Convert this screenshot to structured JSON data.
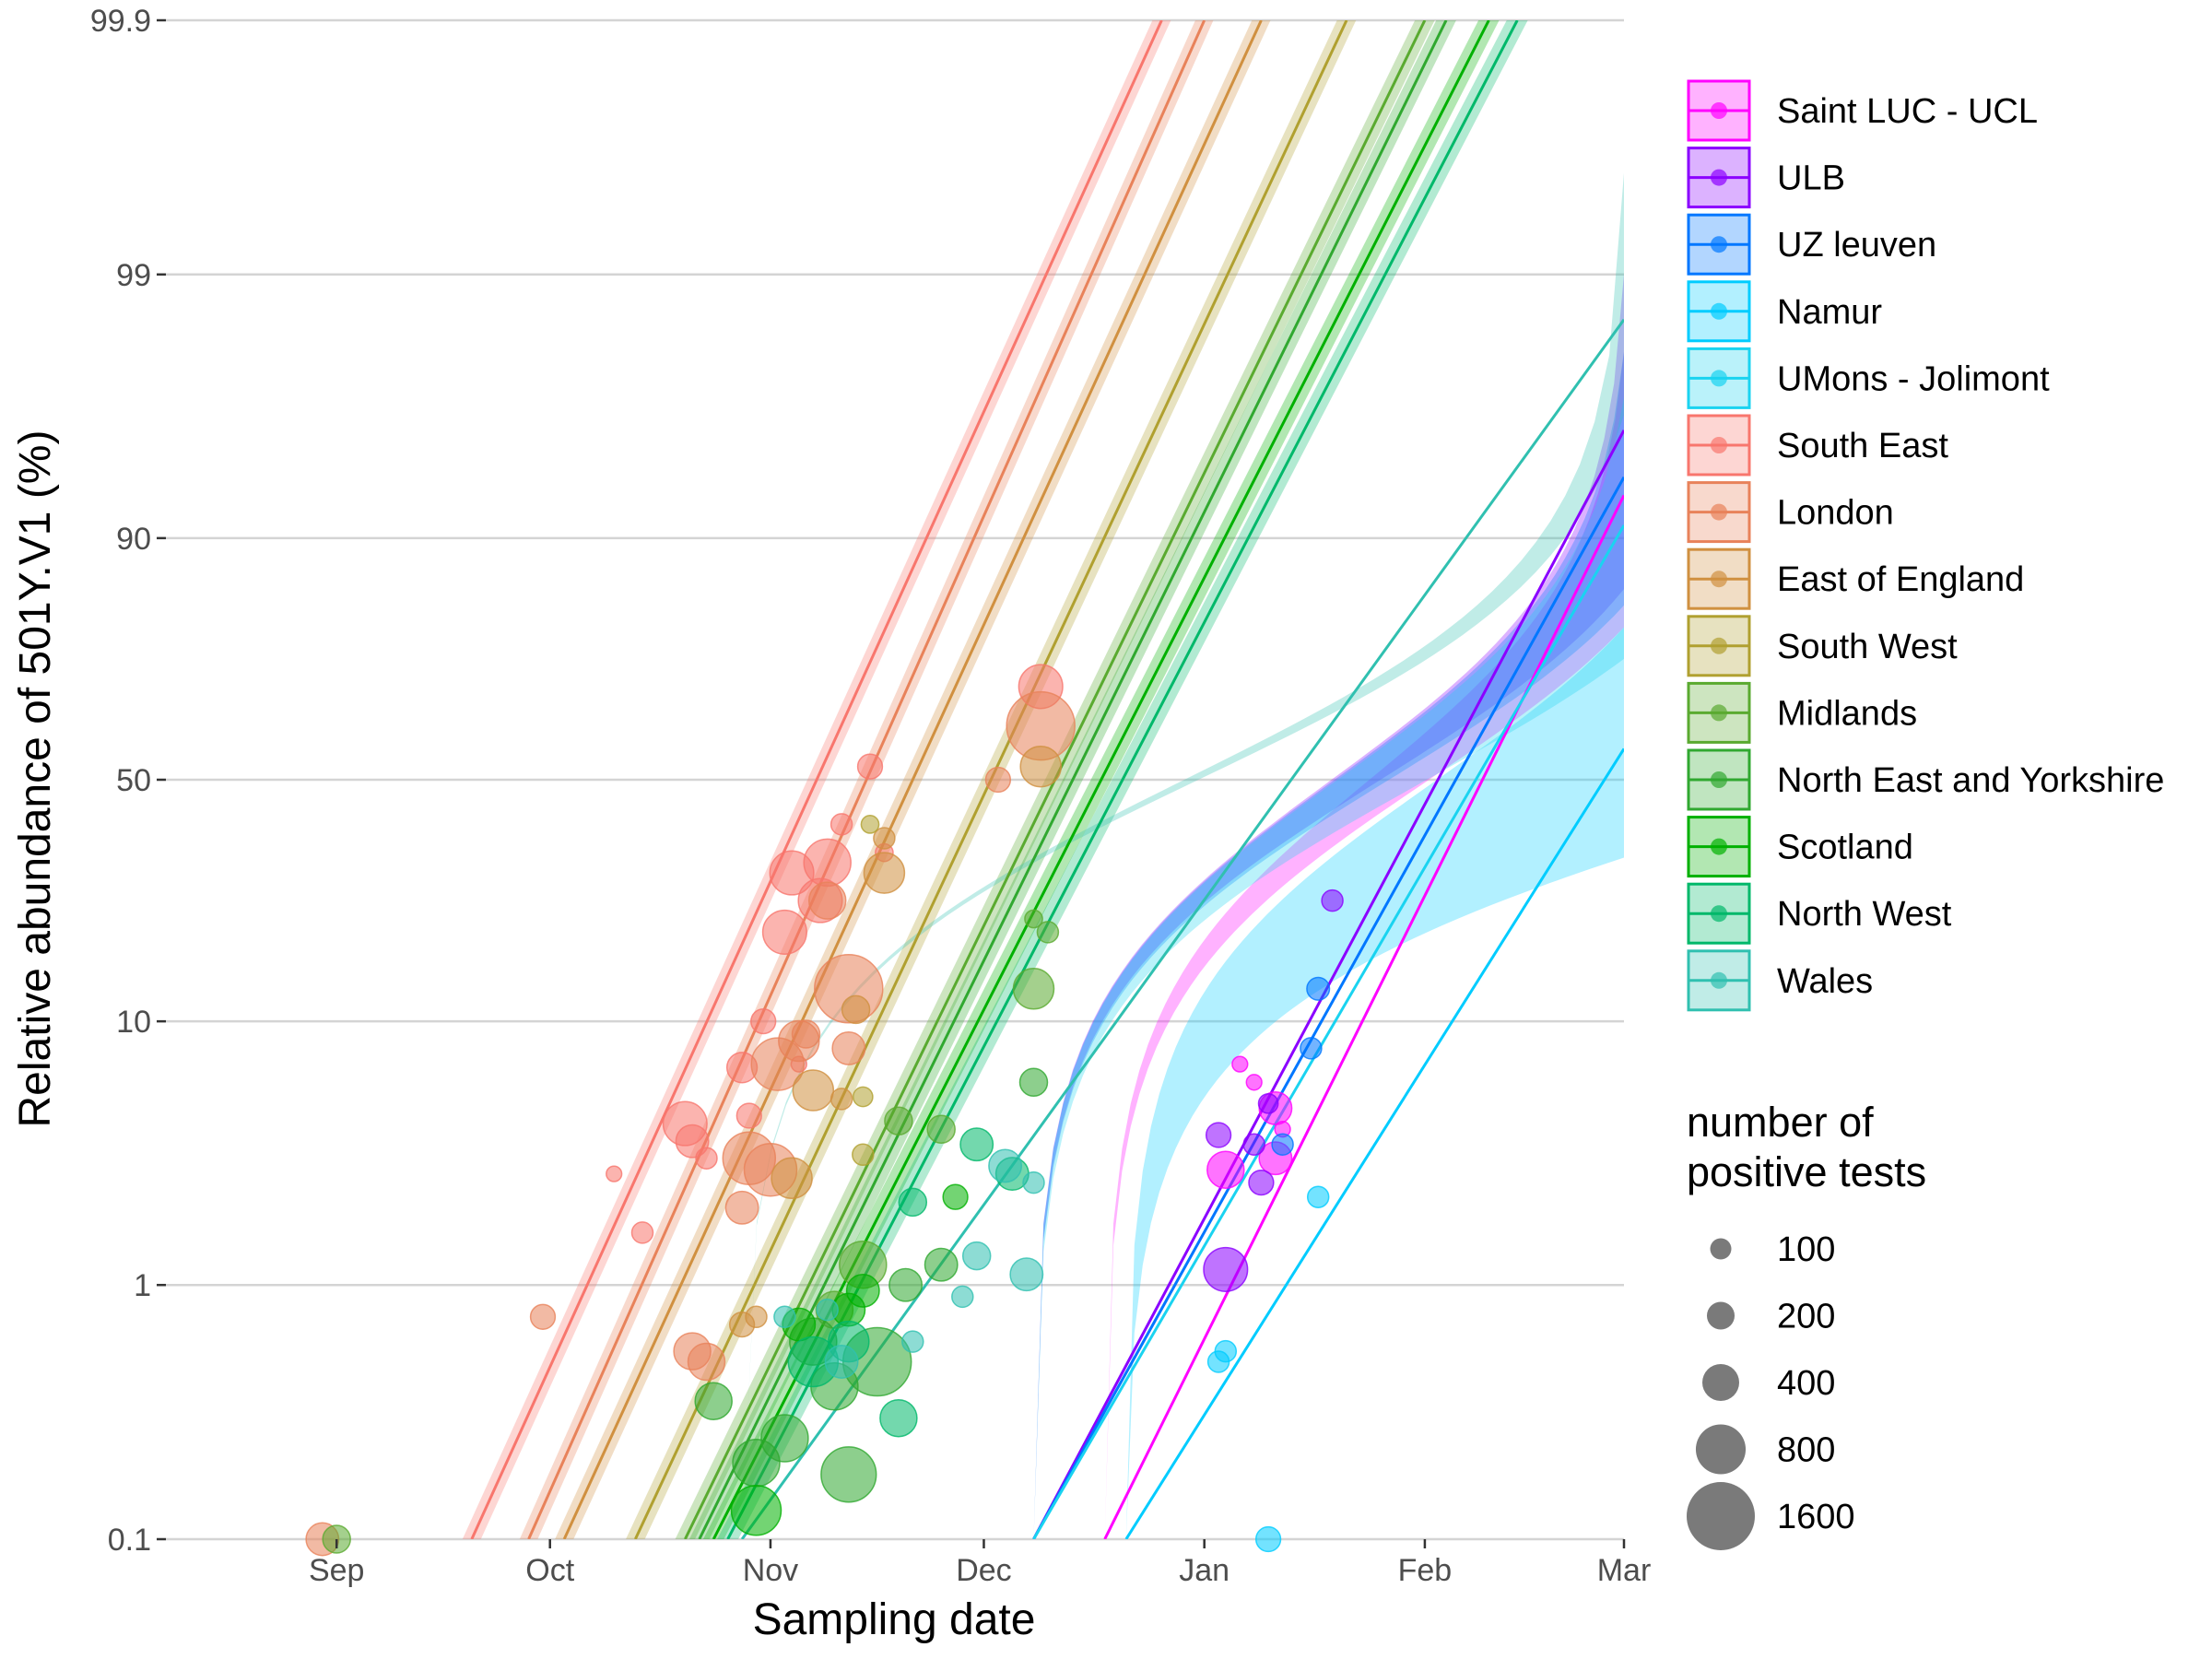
{
  "chart_data": {
    "type": "line",
    "xlabel": "Sampling date",
    "ylabel": "Relative abundance of 501Y.V1 (%)",
    "y_scale": "logit",
    "x_ticks": [
      "Sep",
      "Oct",
      "Nov",
      "Dec",
      "Jan",
      "Feb",
      "Mar"
    ],
    "x_tick_dates": [
      "2020-09-01",
      "2020-10-01",
      "2020-11-01",
      "2020-12-01",
      "2021-01-01",
      "2021-02-01",
      "2021-03-01"
    ],
    "xlim": [
      "2020-08-08",
      "2021-03-01"
    ],
    "y_ticks": [
      0.1,
      1,
      10,
      50,
      90,
      99,
      99.9
    ],
    "y_tick_labels": [
      "0.1",
      "1",
      "10",
      "50",
      "90",
      "99",
      "99.9"
    ],
    "ylim": [
      0.1,
      99.9
    ],
    "grid": true,
    "legend_position": "right",
    "legend_title": "",
    "series": [
      {
        "name": "Saint LUC - UCL",
        "color": "#FF00FF",
        "fit": [
          [
            "2020-12-18",
            0.1
          ],
          [
            "2021-03-01",
            93
          ]
        ],
        "ci": [
          [
            "2020-12-18",
            0.1,
            0.1
          ],
          [
            "2021-03-01",
            80,
            98
          ]
        ],
        "points": [
          [
            "2021-01-06",
            7.0,
            40
          ],
          [
            "2021-01-08",
            6.0,
            40
          ],
          [
            "2021-01-04",
            2.8,
            400
          ],
          [
            "2021-01-11",
            4.8,
            300
          ],
          [
            "2021-01-12",
            4.0,
            40
          ],
          [
            "2021-01-11",
            3.1,
            300
          ]
        ]
      },
      {
        "name": "ULB",
        "color": "#8B00FF",
        "fit": [
          [
            "2020-12-08",
            0.1
          ],
          [
            "2021-03-01",
            96
          ]
        ],
        "ci": [
          [
            "2020-12-08",
            0.1,
            0.1
          ],
          [
            "2021-03-01",
            85,
            99
          ]
        ],
        "points": [
          [
            "2021-01-03",
            3.8,
            150
          ],
          [
            "2021-01-08",
            3.5,
            100
          ],
          [
            "2021-01-04",
            1.15,
            600
          ],
          [
            "2021-01-09",
            2.5,
            150
          ],
          [
            "2021-01-19",
            25,
            100
          ],
          [
            "2021-01-10",
            5.0,
            80
          ]
        ]
      },
      {
        "name": "UZ leuven",
        "color": "#0077FF",
        "fit": [
          [
            "2020-12-08",
            0.1
          ],
          [
            "2021-03-01",
            94
          ]
        ],
        "ci": [
          [
            "2020-12-08",
            0.1,
            0.1
          ],
          [
            "2021-03-01",
            83,
            98
          ]
        ],
        "points": [
          [
            "2021-01-17",
            13,
            120
          ],
          [
            "2021-01-16",
            8.0,
            100
          ],
          [
            "2021-01-12",
            3.5,
            100
          ]
        ]
      },
      {
        "name": "Namur",
        "color": "#00CCFF",
        "fit": [
          [
            "2020-12-21",
            0.1
          ],
          [
            "2021-03-01",
            57
          ]
        ],
        "ci": [
          [
            "2020-12-21",
            0.1,
            0.1
          ],
          [
            "2021-03-01",
            33,
            80
          ]
        ],
        "points": [
          [
            "2021-01-03",
            0.5,
            100
          ],
          [
            "2021-01-04",
            0.55,
            100
          ],
          [
            "2021-01-17",
            2.2,
            100
          ],
          [
            "2021-01-10",
            0.1,
            150
          ]
        ]
      },
      {
        "name": "UMons - Jolimont",
        "color": "#1AD3F0",
        "fit": [
          [
            "2020-12-08",
            0.1
          ],
          [
            "2021-03-01",
            91
          ]
        ],
        "ci": [
          [
            "2020-12-08",
            0.1,
            0.1
          ],
          [
            "2021-03-01",
            75,
            97
          ]
        ],
        "points": []
      },
      {
        "name": "South East",
        "color": "#F8766D",
        "fit": [
          [
            "2020-09-20",
            0.1
          ],
          [
            "2020-12-26",
            99.9
          ]
        ],
        "ci": [
          [
            "2020-09-20",
            0.1,
            0.1
          ],
          [
            "2020-12-26",
            99.9,
            99.9
          ]
        ],
        "points": [
          [
            "2020-10-10",
            2.7,
            40
          ],
          [
            "2020-10-14",
            1.6,
            100
          ],
          [
            "2020-10-20",
            4.2,
            600
          ],
          [
            "2020-10-21",
            3.6,
            300
          ],
          [
            "2020-10-23",
            3.1,
            100
          ],
          [
            "2020-10-28",
            6.8,
            250
          ],
          [
            "2020-10-29",
            4.5,
            150
          ],
          [
            "2020-10-31",
            10,
            150
          ],
          [
            "2020-11-03",
            20,
            600
          ],
          [
            "2020-11-04",
            30,
            600
          ],
          [
            "2020-11-05",
            7.0,
            40
          ],
          [
            "2020-11-08",
            25,
            600
          ],
          [
            "2020-11-09",
            32,
            700
          ],
          [
            "2020-11-11",
            40,
            100
          ],
          [
            "2020-11-15",
            53,
            150
          ],
          [
            "2020-11-17",
            34,
            60
          ],
          [
            "2020-12-09",
            70,
            600
          ]
        ]
      },
      {
        "name": "London",
        "color": "#E8825A",
        "fit": [
          [
            "2020-09-28",
            0.1
          ],
          [
            "2021-01-01",
            99.9
          ]
        ],
        "ci": [
          [
            "2020-09-28",
            0.1,
            0.1
          ],
          [
            "2021-01-01",
            99.9,
            99.9
          ]
        ],
        "points": [
          [
            "2020-08-30",
            0.1,
            300
          ],
          [
            "2020-09-30",
            0.75,
            150
          ],
          [
            "2020-10-21",
            0.55,
            400
          ],
          [
            "2020-10-23",
            0.5,
            400
          ],
          [
            "2020-10-28",
            2.0,
            300
          ],
          [
            "2020-10-29",
            3.1,
            900
          ],
          [
            "2020-11-01",
            2.8,
            900
          ],
          [
            "2020-11-02",
            7.0,
            900
          ],
          [
            "2020-11-05",
            8.5,
            500
          ],
          [
            "2020-11-06",
            9.0,
            200
          ],
          [
            "2020-11-12",
            13,
            1600
          ],
          [
            "2020-11-12",
            8.0,
            300
          ],
          [
            "2020-11-09",
            25,
            400
          ],
          [
            "2020-12-03",
            50,
            150
          ],
          [
            "2020-12-09",
            62,
            1600
          ]
        ]
      },
      {
        "name": "East of England",
        "color": "#D09040",
        "fit": [
          [
            "2020-10-03",
            0.1
          ],
          [
            "2021-01-09",
            99.9
          ]
        ],
        "ci": [
          [
            "2020-10-03",
            0.1,
            0.1
          ],
          [
            "2021-01-09",
            99.9,
            99.9
          ]
        ],
        "points": [
          [
            "2020-10-28",
            0.7,
            150
          ],
          [
            "2020-10-30",
            0.75,
            100
          ],
          [
            "2020-11-04",
            2.6,
            500
          ],
          [
            "2020-11-07",
            5.6,
            500
          ],
          [
            "2020-11-11",
            5.2,
            100
          ],
          [
            "2020-11-13",
            11,
            200
          ],
          [
            "2020-11-17",
            30,
            500
          ],
          [
            "2020-11-17",
            37,
            100
          ],
          [
            "2020-12-09",
            53,
            500
          ]
        ]
      },
      {
        "name": "South West",
        "color": "#B0A030",
        "fit": [
          [
            "2020-10-13",
            0.1
          ],
          [
            "2021-01-21",
            99.9
          ]
        ],
        "ci": [
          [
            "2020-10-13",
            0.1,
            0.1
          ],
          [
            "2021-01-21",
            99.9,
            99.9
          ]
        ],
        "points": [
          [
            "2020-11-14",
            3.2,
            100
          ],
          [
            "2020-11-14",
            5.3,
            80
          ],
          [
            "2020-11-15",
            40,
            60
          ]
        ]
      },
      {
        "name": "Midlands",
        "color": "#5AAA30",
        "fit": [
          [
            "2020-10-20",
            0.1
          ],
          [
            "2021-02-01",
            99.9
          ]
        ],
        "ci": [
          [
            "2020-10-20",
            0.1,
            0.1
          ],
          [
            "2021-02-01",
            99.9,
            99.9
          ]
        ],
        "points": [
          [
            "2020-09-01",
            0.1,
            200
          ],
          [
            "2020-11-10",
            0.8,
            400
          ],
          [
            "2020-11-14",
            1.2,
            700
          ],
          [
            "2020-11-19",
            4.3,
            200
          ],
          [
            "2020-11-25",
            4.0,
            200
          ],
          [
            "2020-12-08",
            13,
            500
          ],
          [
            "2020-12-10",
            20,
            100
          ],
          [
            "2020-12-08",
            22,
            60
          ]
        ]
      },
      {
        "name": "North East and Yorkshire",
        "color": "#30A830",
        "fit": [
          [
            "2020-10-22",
            0.1
          ],
          [
            "2021-02-04",
            99.9
          ]
        ],
        "ci": [
          [
            "2020-10-22",
            0.1,
            0.1
          ],
          [
            "2021-02-04",
            99.9,
            99.9
          ]
        ],
        "points": [
          [
            "2020-10-24",
            0.35,
            400
          ],
          [
            "2020-10-30",
            0.2,
            700
          ],
          [
            "2020-11-03",
            0.25,
            700
          ],
          [
            "2020-11-07",
            0.6,
            700
          ],
          [
            "2020-11-10",
            0.4,
            700
          ],
          [
            "2020-11-12",
            0.18,
            1000
          ],
          [
            "2020-11-16",
            0.5,
            1600
          ],
          [
            "2020-11-20",
            1.0,
            300
          ],
          [
            "2020-11-25",
            1.2,
            300
          ],
          [
            "2020-12-08",
            6.0,
            200
          ]
        ]
      },
      {
        "name": "Scotland",
        "color": "#00B000",
        "fit": [
          [
            "2020-10-24",
            0.1
          ],
          [
            "2021-02-10",
            99.9
          ]
        ],
        "ci": [
          [
            "2020-10-24",
            0.1,
            0.1
          ],
          [
            "2021-02-10",
            99.9,
            99.9
          ]
        ],
        "points": [
          [
            "2020-10-30",
            0.13,
            800
          ],
          [
            "2020-11-05",
            0.7,
            300
          ],
          [
            "2020-11-12",
            0.8,
            300
          ],
          [
            "2020-11-14",
            0.95,
            300
          ],
          [
            "2020-11-27",
            2.2,
            150
          ]
        ]
      },
      {
        "name": "North West",
        "color": "#00B86A",
        "fit": [
          [
            "2020-10-26",
            0.1
          ],
          [
            "2021-02-14",
            99.9
          ]
        ],
        "ci": [
          [
            "2020-10-26",
            0.1,
            0.1
          ],
          [
            "2021-02-14",
            99.9,
            99.9
          ]
        ],
        "points": [
          [
            "2020-11-07",
            0.5,
            800
          ],
          [
            "2020-11-12",
            0.6,
            500
          ],
          [
            "2020-11-19",
            0.3,
            400
          ],
          [
            "2020-11-21",
            2.1,
            200
          ],
          [
            "2020-11-30",
            3.5,
            300
          ],
          [
            "2020-12-05",
            2.7,
            300
          ]
        ]
      },
      {
        "name": "Wales",
        "color": "#30C0B0",
        "fit": [
          [
            "2020-10-28",
            0.1
          ],
          [
            "2021-03-01",
            98.5
          ]
        ],
        "ci": [
          [
            "2020-10-28",
            0.1,
            0.1
          ],
          [
            "2021-03-01",
            96.5,
            99.6
          ]
        ],
        "points": [
          [
            "2020-11-03",
            0.75,
            100
          ],
          [
            "2020-11-09",
            0.8,
            100
          ],
          [
            "2020-11-11",
            0.5,
            300
          ],
          [
            "2020-11-21",
            0.6,
            100
          ],
          [
            "2020-11-30",
            1.3,
            200
          ],
          [
            "2020-11-28",
            0.9,
            100
          ],
          [
            "2020-12-04",
            2.9,
            300
          ],
          [
            "2020-12-07",
            1.1,
            300
          ],
          [
            "2020-12-08",
            2.5,
            100
          ]
        ]
      }
    ],
    "size_legend": {
      "title": "number of\npositive tests",
      "entries": [
        {
          "label": "100",
          "value": 100
        },
        {
          "label": "200",
          "value": 200
        },
        {
          "label": "400",
          "value": 400
        },
        {
          "label": "800",
          "value": 800
        },
        {
          "label": "1600",
          "value": 1600
        }
      ]
    }
  }
}
